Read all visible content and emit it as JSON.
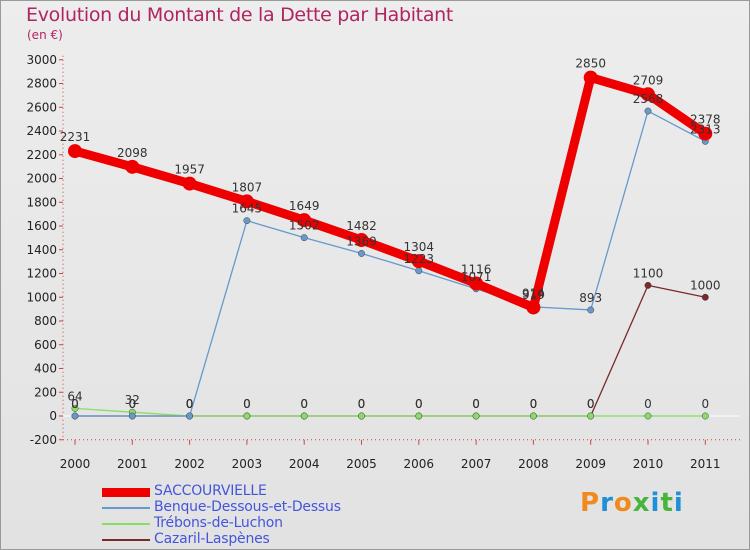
{
  "header": {
    "title": "Evolution du Montant de la Dette par Habitant",
    "unit": "(en €)"
  },
  "logo": {
    "text": "Proxiti"
  },
  "chart_data": {
    "type": "line",
    "title": "Evolution du Montant de la Dette par Habitant",
    "ylabel": "(en €)",
    "xlabel": "",
    "ylim": [
      -200,
      3000
    ],
    "yticks": [
      -200,
      0,
      200,
      400,
      600,
      800,
      1000,
      1200,
      1400,
      1600,
      1800,
      2000,
      2200,
      2400,
      2600,
      2800,
      3000
    ],
    "grid": false,
    "legend_position": "bottom-left",
    "categories": [
      "2000",
      "2001",
      "2002",
      "2003",
      "2004",
      "2005",
      "2006",
      "2007",
      "2008",
      "2009",
      "2010",
      "2011"
    ],
    "series": [
      {
        "name": "SACCOURVIELLE",
        "color": "#ee0000",
        "values": [
          2231,
          2098,
          1957,
          1807,
          1649,
          1482,
          1304,
          1116,
          914,
          2850,
          2709,
          2378
        ]
      },
      {
        "name": "Benque-Dessous-et-Dessus",
        "color": "#6699cc",
        "values": [
          0,
          0,
          0,
          1645,
          1502,
          1369,
          1223,
          1071,
          919,
          893,
          2568,
          2313
        ]
      },
      {
        "name": "Trébons-de-Luchon",
        "color": "#88dd66",
        "values": [
          64,
          32,
          0,
          0,
          0,
          0,
          0,
          0,
          0,
          0,
          0,
          0
        ]
      },
      {
        "name": "Cazaril-Laspènes",
        "color": "#7a2a2a",
        "values": [
          0,
          0,
          0,
          0,
          0,
          0,
          0,
          0,
          0,
          0,
          1100,
          1000
        ]
      }
    ]
  }
}
